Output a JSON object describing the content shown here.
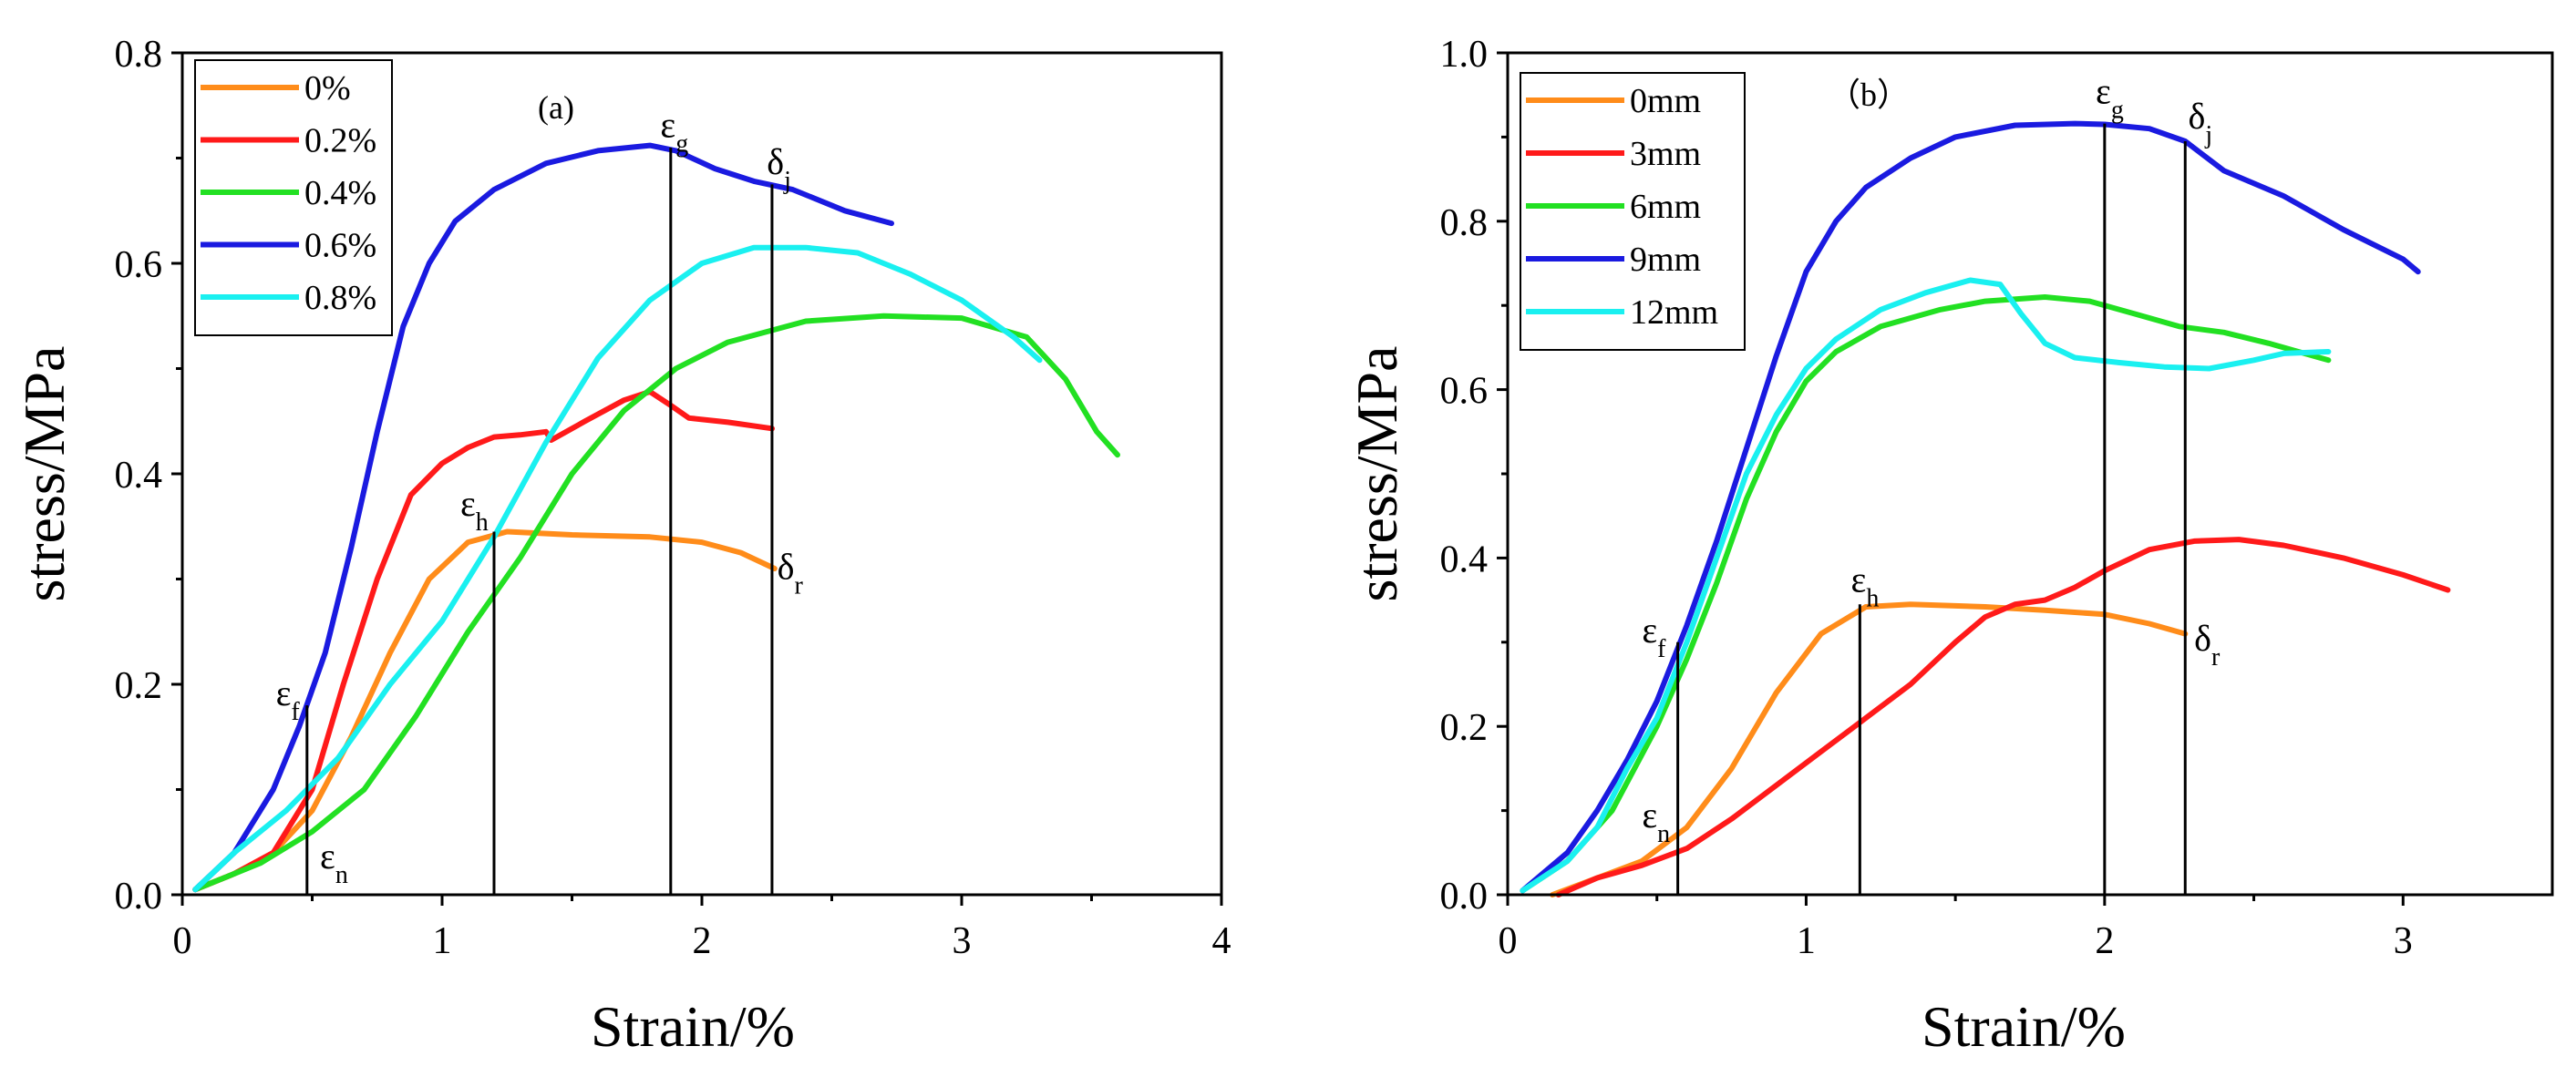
{
  "chart_data": [
    {
      "type": "line",
      "panel_label": "(a)",
      "xlabel": "Strain/%",
      "ylabel": "stress/MPa",
      "xlim": [
        0,
        4
      ],
      "ylim": [
        0,
        0.8
      ],
      "xticks": [
        0,
        1,
        2,
        3,
        4
      ],
      "yticks": [
        0.0,
        0.2,
        0.4,
        0.6,
        0.8
      ],
      "xtick_labels": [
        "0",
        "1",
        "2",
        "3",
        "4"
      ],
      "ytick_labels": [
        "0.0",
        "0.2",
        "0.4",
        "0.6",
        "0.8"
      ],
      "legend_position": "top-left",
      "series": [
        {
          "name": "0%",
          "color": "#FF8C1A",
          "points": [
            [
              0.05,
              0.005
            ],
            [
              0.2,
              0.02
            ],
            [
              0.35,
              0.04
            ],
            [
              0.5,
              0.08
            ],
            [
              0.65,
              0.15
            ],
            [
              0.8,
              0.23
            ],
            [
              0.95,
              0.3
            ],
            [
              1.1,
              0.335
            ],
            [
              1.25,
              0.345
            ],
            [
              1.5,
              0.342
            ],
            [
              1.8,
              0.34
            ],
            [
              2.0,
              0.335
            ],
            [
              2.15,
              0.325
            ],
            [
              2.28,
              0.31
            ]
          ]
        },
        {
          "name": "0.2%",
          "color": "#FF1A1A",
          "points": [
            [
              0.05,
              0.005
            ],
            [
              0.2,
              0.02
            ],
            [
              0.35,
              0.04
            ],
            [
              0.5,
              0.1
            ],
            [
              0.62,
              0.2
            ],
            [
              0.75,
              0.3
            ],
            [
              0.88,
              0.38
            ],
            [
              1.0,
              0.41
            ],
            [
              1.1,
              0.425
            ],
            [
              1.2,
              0.435
            ],
            [
              1.3,
              0.437
            ],
            [
              1.4,
              0.44
            ],
            [
              1.42,
              0.432
            ],
            [
              1.55,
              0.45
            ],
            [
              1.7,
              0.47
            ],
            [
              1.8,
              0.478
            ],
            [
              1.88,
              0.465
            ],
            [
              1.95,
              0.453
            ],
            [
              2.1,
              0.449
            ],
            [
              2.27,
              0.443
            ]
          ]
        },
        {
          "name": "0.4%",
          "color": "#22E022",
          "points": [
            [
              0.05,
              0.005
            ],
            [
              0.3,
              0.03
            ],
            [
              0.5,
              0.06
            ],
            [
              0.7,
              0.1
            ],
            [
              0.9,
              0.17
            ],
            [
              1.1,
              0.25
            ],
            [
              1.3,
              0.32
            ],
            [
              1.5,
              0.4
            ],
            [
              1.7,
              0.46
            ],
            [
              1.9,
              0.5
            ],
            [
              2.1,
              0.525
            ],
            [
              2.4,
              0.545
            ],
            [
              2.7,
              0.55
            ],
            [
              3.0,
              0.548
            ],
            [
              3.25,
              0.53
            ],
            [
              3.4,
              0.49
            ],
            [
              3.52,
              0.44
            ],
            [
              3.6,
              0.418
            ]
          ]
        },
        {
          "name": "0.6%",
          "color": "#1A1AE0",
          "points": [
            [
              0.05,
              0.005
            ],
            [
              0.2,
              0.04
            ],
            [
              0.35,
              0.1
            ],
            [
              0.45,
              0.16
            ],
            [
              0.55,
              0.23
            ],
            [
              0.65,
              0.33
            ],
            [
              0.75,
              0.44
            ],
            [
              0.85,
              0.54
            ],
            [
              0.95,
              0.6
            ],
            [
              1.05,
              0.64
            ],
            [
              1.2,
              0.67
            ],
            [
              1.4,
              0.695
            ],
            [
              1.6,
              0.707
            ],
            [
              1.8,
              0.712
            ],
            [
              1.9,
              0.707
            ],
            [
              2.05,
              0.69
            ],
            [
              2.2,
              0.678
            ],
            [
              2.35,
              0.67
            ],
            [
              2.55,
              0.65
            ],
            [
              2.73,
              0.638
            ]
          ]
        },
        {
          "name": "0.8%",
          "color": "#1AF0F0",
          "points": [
            [
              0.05,
              0.005
            ],
            [
              0.2,
              0.04
            ],
            [
              0.4,
              0.08
            ],
            [
              0.6,
              0.13
            ],
            [
              0.8,
              0.2
            ],
            [
              1.0,
              0.26
            ],
            [
              1.2,
              0.34
            ],
            [
              1.4,
              0.43
            ],
            [
              1.6,
              0.51
            ],
            [
              1.8,
              0.565
            ],
            [
              2.0,
              0.6
            ],
            [
              2.2,
              0.615
            ],
            [
              2.4,
              0.615
            ],
            [
              2.6,
              0.61
            ],
            [
              2.8,
              0.59
            ],
            [
              3.0,
              0.565
            ],
            [
              3.2,
              0.53
            ],
            [
              3.3,
              0.508
            ]
          ]
        }
      ],
      "vlines": [
        {
          "x": 0.48,
          "top": 0.18
        },
        {
          "x": 1.2,
          "top": 0.345
        },
        {
          "x": 1.88,
          "top": 0.71
        },
        {
          "x": 2.27,
          "top": 0.675
        }
      ],
      "annotations": [
        {
          "text": "ε",
          "sub": "f",
          "x": 0.36,
          "y": 0.18
        },
        {
          "text": "ε",
          "sub": "n",
          "x": 0.53,
          "y": 0.025
        },
        {
          "text": "ε",
          "sub": "h",
          "x": 1.07,
          "y": 0.36
        },
        {
          "text": "ε",
          "sub": "g",
          "x": 1.84,
          "y": 0.72
        },
        {
          "text": "δ",
          "sub": "j",
          "x": 2.25,
          "y": 0.685
        },
        {
          "text": "δ",
          "sub": "r",
          "x": 2.29,
          "y": 0.3
        }
      ]
    },
    {
      "type": "line",
      "panel_label": "（b）",
      "xlabel": "Strain/%",
      "ylabel": "stress/MPa",
      "xlim": [
        0,
        3.5
      ],
      "ylim": [
        0,
        1.0
      ],
      "xticks": [
        0,
        1,
        2,
        3
      ],
      "yticks": [
        0.0,
        0.2,
        0.4,
        0.6,
        0.8,
        1.0
      ],
      "xtick_labels": [
        "0",
        "1",
        "2",
        "3"
      ],
      "ytick_labels": [
        "0.0",
        "0.2",
        "0.4",
        "0.6",
        "0.8",
        "1.0"
      ],
      "legend_position": "top-left",
      "series": [
        {
          "name": "0mm",
          "color": "#FF8C1A",
          "points": [
            [
              0.15,
              0.0
            ],
            [
              0.3,
              0.02
            ],
            [
              0.45,
              0.04
            ],
            [
              0.6,
              0.08
            ],
            [
              0.75,
              0.15
            ],
            [
              0.9,
              0.24
            ],
            [
              1.05,
              0.31
            ],
            [
              1.2,
              0.342
            ],
            [
              1.35,
              0.345
            ],
            [
              1.6,
              0.342
            ],
            [
              1.8,
              0.338
            ],
            [
              2.0,
              0.333
            ],
            [
              2.15,
              0.322
            ],
            [
              2.27,
              0.31
            ]
          ]
        },
        {
          "name": "3mm",
          "color": "#FF1A1A",
          "points": [
            [
              0.17,
              0.0
            ],
            [
              0.3,
              0.02
            ],
            [
              0.45,
              0.035
            ],
            [
              0.6,
              0.055
            ],
            [
              0.75,
              0.09
            ],
            [
              0.9,
              0.13
            ],
            [
              1.05,
              0.17
            ],
            [
              1.2,
              0.21
            ],
            [
              1.35,
              0.25
            ],
            [
              1.5,
              0.3
            ],
            [
              1.6,
              0.33
            ],
            [
              1.7,
              0.345
            ],
            [
              1.8,
              0.35
            ],
            [
              1.9,
              0.365
            ],
            [
              2.0,
              0.385
            ],
            [
              2.15,
              0.41
            ],
            [
              2.3,
              0.42
            ],
            [
              2.45,
              0.422
            ],
            [
              2.6,
              0.415
            ],
            [
              2.8,
              0.4
            ],
            [
              3.0,
              0.38
            ],
            [
              3.15,
              0.362
            ]
          ]
        },
        {
          "name": "6mm",
          "color": "#22E022",
          "points": [
            [
              0.05,
              0.005
            ],
            [
              0.2,
              0.04
            ],
            [
              0.35,
              0.1
            ],
            [
              0.5,
              0.2
            ],
            [
              0.6,
              0.28
            ],
            [
              0.7,
              0.37
            ],
            [
              0.8,
              0.47
            ],
            [
              0.9,
              0.55
            ],
            [
              1.0,
              0.61
            ],
            [
              1.1,
              0.645
            ],
            [
              1.25,
              0.675
            ],
            [
              1.45,
              0.695
            ],
            [
              1.6,
              0.705
            ],
            [
              1.8,
              0.71
            ],
            [
              1.95,
              0.705
            ],
            [
              2.1,
              0.69
            ],
            [
              2.25,
              0.675
            ],
            [
              2.4,
              0.668
            ],
            [
              2.55,
              0.655
            ],
            [
              2.75,
              0.635
            ]
          ]
        },
        {
          "name": "9mm",
          "color": "#1A1AE0",
          "points": [
            [
              0.05,
              0.005
            ],
            [
              0.2,
              0.05
            ],
            [
              0.3,
              0.1
            ],
            [
              0.4,
              0.16
            ],
            [
              0.5,
              0.23
            ],
            [
              0.6,
              0.32
            ],
            [
              0.7,
              0.42
            ],
            [
              0.8,
              0.53
            ],
            [
              0.9,
              0.64
            ],
            [
              1.0,
              0.74
            ],
            [
              1.1,
              0.8
            ],
            [
              1.2,
              0.84
            ],
            [
              1.35,
              0.875
            ],
            [
              1.5,
              0.9
            ],
            [
              1.7,
              0.914
            ],
            [
              1.9,
              0.916
            ],
            [
              2.0,
              0.915
            ],
            [
              2.15,
              0.91
            ],
            [
              2.27,
              0.895
            ],
            [
              2.4,
              0.86
            ],
            [
              2.6,
              0.83
            ],
            [
              2.8,
              0.79
            ],
            [
              3.0,
              0.755
            ],
            [
              3.05,
              0.74
            ]
          ]
        },
        {
          "name": "12mm",
          "color": "#1AF0F0",
          "points": [
            [
              0.05,
              0.005
            ],
            [
              0.2,
              0.04
            ],
            [
              0.3,
              0.08
            ],
            [
              0.4,
              0.15
            ],
            [
              0.5,
              0.21
            ],
            [
              0.6,
              0.3
            ],
            [
              0.7,
              0.4
            ],
            [
              0.8,
              0.5
            ],
            [
              0.9,
              0.57
            ],
            [
              1.0,
              0.625
            ],
            [
              1.1,
              0.66
            ],
            [
              1.25,
              0.695
            ],
            [
              1.4,
              0.715
            ],
            [
              1.55,
              0.73
            ],
            [
              1.65,
              0.725
            ],
            [
              1.72,
              0.69
            ],
            [
              1.8,
              0.655
            ],
            [
              1.9,
              0.638
            ],
            [
              2.05,
              0.632
            ],
            [
              2.2,
              0.627
            ],
            [
              2.35,
              0.625
            ],
            [
              2.5,
              0.635
            ],
            [
              2.6,
              0.643
            ],
            [
              2.75,
              0.645
            ]
          ]
        }
      ],
      "vlines": [
        {
          "x": 0.57,
          "top": 0.3
        },
        {
          "x": 1.18,
          "top": 0.345
        },
        {
          "x": 2.0,
          "top": 0.916
        },
        {
          "x": 2.27,
          "top": 0.895
        }
      ],
      "annotations": [
        {
          "text": "ε",
          "sub": "f",
          "x": 0.45,
          "y": 0.3
        },
        {
          "text": "ε",
          "sub": "n",
          "x": 0.45,
          "y": 0.08
        },
        {
          "text": "ε",
          "sub": "h",
          "x": 1.15,
          "y": 0.36
        },
        {
          "text": "ε",
          "sub": "g",
          "x": 1.97,
          "y": 0.94
        },
        {
          "text": "δ",
          "sub": "j",
          "x": 2.28,
          "y": 0.91
        },
        {
          "text": "δ",
          "sub": "r",
          "x": 2.3,
          "y": 0.29
        }
      ]
    }
  ]
}
